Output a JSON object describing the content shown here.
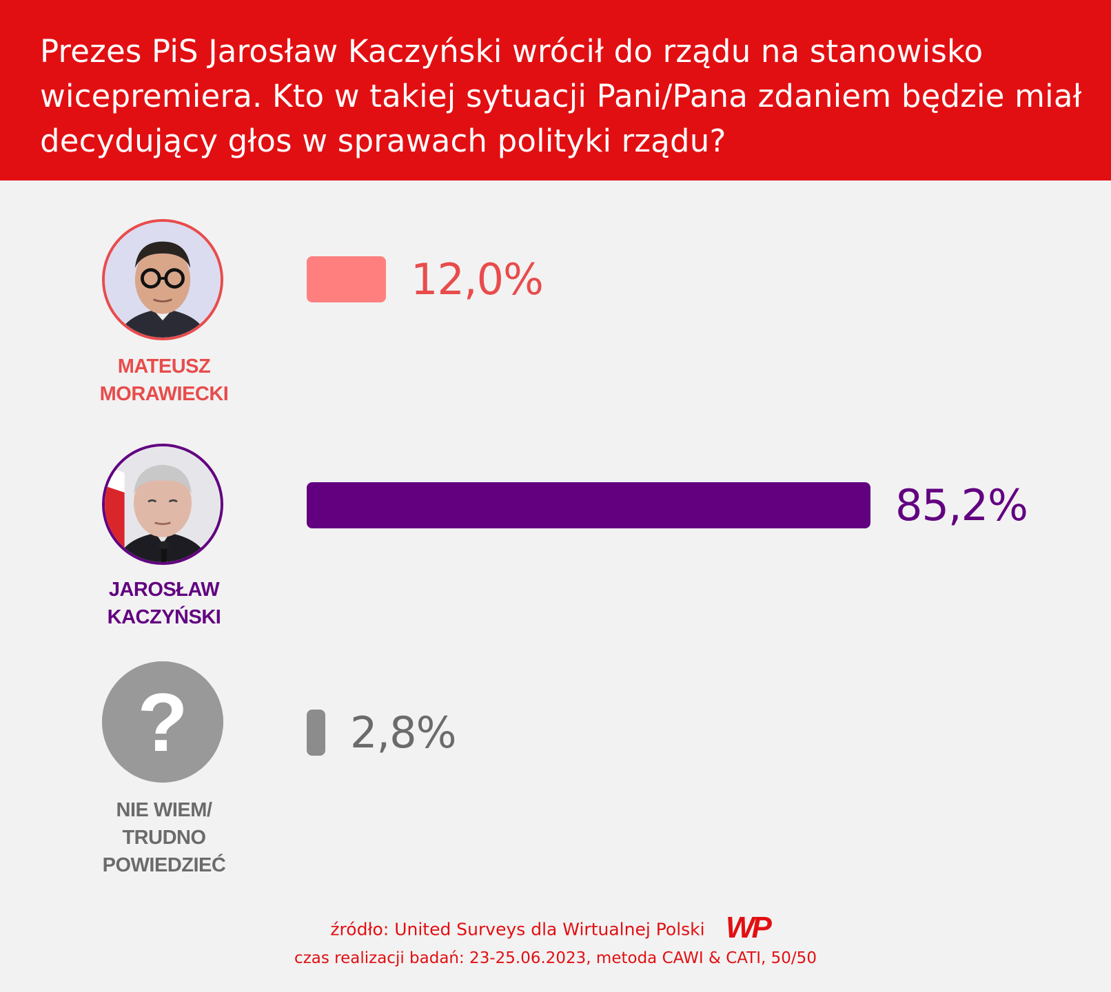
{
  "header": {
    "title": "Prezes PiS Jarosław Kaczyński wrócił do rządu na stanowisko wicepremiera. Kto w takiej sytuacji Pani/Pana zdaniem będzie miał decydujący głos w sprawach polityki rządu?"
  },
  "chart_data": {
    "type": "bar",
    "orientation": "horizontal",
    "title": "Prezes PiS Jarosław Kaczyński wrócił do rządu na stanowisko wicepremiera. Kto w takiej sytuacji Pani/Pana zdaniem będzie miał decydujący głos w sprawach polityki rządu?",
    "categories": [
      "MATEUSZ\nMORAWIECKI",
      "JAROSŁAW\nKACZYŃSKI",
      "NIE WIEM/\nTRUDNO POWIEDZIEĆ"
    ],
    "values": [
      12.0,
      85.2,
      2.8
    ],
    "value_labels": [
      "12,0%",
      "85,2%",
      "2,8%"
    ],
    "colors": [
      "#ff7f7f",
      "#620080",
      "#8c8c8c"
    ],
    "label_colors": [
      "#e84c4c",
      "#620080",
      "#6b6b6b"
    ],
    "avatar_icons": [
      "person-photo-icon",
      "person-photo-icon",
      "question-mark-icon"
    ],
    "xlim": [
      0,
      100
    ],
    "grid": false,
    "legend": "none"
  },
  "footer": {
    "source": "źródło: United Surveys dla Wirtualnej Polski",
    "logo_text": "WP",
    "meta": "czas realizacji badań: 23-25.06.2023, metoda CAWI & CATI, 50/50"
  }
}
